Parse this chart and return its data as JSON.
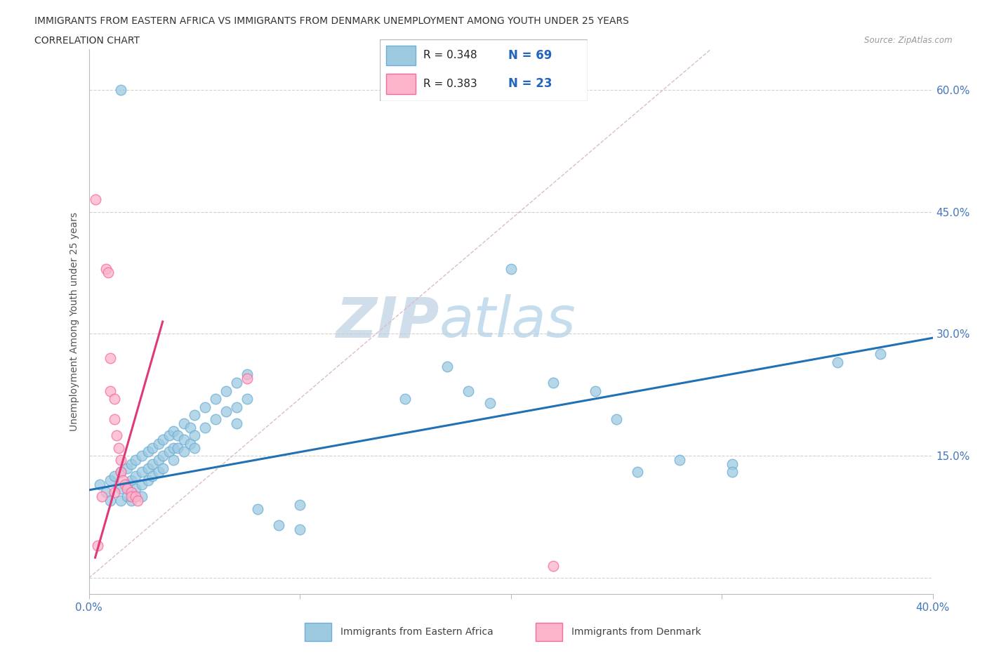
{
  "title_line1": "IMMIGRANTS FROM EASTERN AFRICA VS IMMIGRANTS FROM DENMARK UNEMPLOYMENT AMONG YOUTH UNDER 25 YEARS",
  "title_line2": "CORRELATION CHART",
  "source_text": "Source: ZipAtlas.com",
  "ylabel": "Unemployment Among Youth under 25 years",
  "xlim": [
    0.0,
    0.4
  ],
  "ylim": [
    -0.02,
    0.65
  ],
  "x_ticks": [
    0.0,
    0.1,
    0.2,
    0.3,
    0.4
  ],
  "y_ticks": [
    0.0,
    0.15,
    0.3,
    0.45,
    0.6
  ],
  "watermark_zip": "ZIP",
  "watermark_atlas": "atlas",
  "blue_color": "#9ecae1",
  "blue_edge_color": "#6baed6",
  "pink_color": "#fbb4c9",
  "pink_edge_color": "#f768a1",
  "blue_line_color": "#2171b5",
  "pink_line_color": "#de3a7a",
  "diag_color": "#ddbbcc",
  "blue_scatter": [
    [
      0.005,
      0.115
    ],
    [
      0.008,
      0.105
    ],
    [
      0.01,
      0.12
    ],
    [
      0.01,
      0.095
    ],
    [
      0.012,
      0.125
    ],
    [
      0.015,
      0.13
    ],
    [
      0.015,
      0.11
    ],
    [
      0.015,
      0.095
    ],
    [
      0.018,
      0.135
    ],
    [
      0.018,
      0.115
    ],
    [
      0.018,
      0.1
    ],
    [
      0.02,
      0.14
    ],
    [
      0.02,
      0.12
    ],
    [
      0.02,
      0.105
    ],
    [
      0.02,
      0.095
    ],
    [
      0.022,
      0.145
    ],
    [
      0.022,
      0.125
    ],
    [
      0.022,
      0.11
    ],
    [
      0.025,
      0.15
    ],
    [
      0.025,
      0.13
    ],
    [
      0.025,
      0.115
    ],
    [
      0.025,
      0.1
    ],
    [
      0.028,
      0.155
    ],
    [
      0.028,
      0.135
    ],
    [
      0.028,
      0.12
    ],
    [
      0.03,
      0.16
    ],
    [
      0.03,
      0.14
    ],
    [
      0.03,
      0.125
    ],
    [
      0.033,
      0.165
    ],
    [
      0.033,
      0.145
    ],
    [
      0.033,
      0.13
    ],
    [
      0.035,
      0.17
    ],
    [
      0.035,
      0.15
    ],
    [
      0.035,
      0.135
    ],
    [
      0.038,
      0.175
    ],
    [
      0.038,
      0.155
    ],
    [
      0.04,
      0.18
    ],
    [
      0.04,
      0.16
    ],
    [
      0.04,
      0.145
    ],
    [
      0.042,
      0.175
    ],
    [
      0.042,
      0.16
    ],
    [
      0.045,
      0.19
    ],
    [
      0.045,
      0.17
    ],
    [
      0.045,
      0.155
    ],
    [
      0.048,
      0.185
    ],
    [
      0.048,
      0.165
    ],
    [
      0.05,
      0.2
    ],
    [
      0.05,
      0.175
    ],
    [
      0.05,
      0.16
    ],
    [
      0.055,
      0.21
    ],
    [
      0.055,
      0.185
    ],
    [
      0.06,
      0.22
    ],
    [
      0.06,
      0.195
    ],
    [
      0.065,
      0.23
    ],
    [
      0.065,
      0.205
    ],
    [
      0.07,
      0.24
    ],
    [
      0.07,
      0.21
    ],
    [
      0.07,
      0.19
    ],
    [
      0.075,
      0.25
    ],
    [
      0.075,
      0.22
    ],
    [
      0.08,
      0.085
    ],
    [
      0.09,
      0.065
    ],
    [
      0.1,
      0.09
    ],
    [
      0.1,
      0.06
    ],
    [
      0.15,
      0.22
    ],
    [
      0.17,
      0.26
    ],
    [
      0.18,
      0.23
    ],
    [
      0.19,
      0.215
    ],
    [
      0.2,
      0.38
    ],
    [
      0.22,
      0.24
    ],
    [
      0.24,
      0.23
    ],
    [
      0.25,
      0.195
    ],
    [
      0.26,
      0.13
    ],
    [
      0.28,
      0.145
    ],
    [
      0.305,
      0.14
    ],
    [
      0.305,
      0.13
    ],
    [
      0.355,
      0.265
    ],
    [
      0.375,
      0.275
    ],
    [
      0.015,
      0.6
    ]
  ],
  "pink_scatter": [
    [
      0.003,
      0.465
    ],
    [
      0.008,
      0.38
    ],
    [
      0.009,
      0.375
    ],
    [
      0.01,
      0.27
    ],
    [
      0.01,
      0.23
    ],
    [
      0.012,
      0.22
    ],
    [
      0.012,
      0.195
    ],
    [
      0.013,
      0.175
    ],
    [
      0.014,
      0.16
    ],
    [
      0.015,
      0.145
    ],
    [
      0.015,
      0.13
    ],
    [
      0.016,
      0.12
    ],
    [
      0.017,
      0.115
    ],
    [
      0.018,
      0.11
    ],
    [
      0.02,
      0.105
    ],
    [
      0.02,
      0.1
    ],
    [
      0.022,
      0.1
    ],
    [
      0.023,
      0.095
    ],
    [
      0.004,
      0.04
    ],
    [
      0.075,
      0.245
    ],
    [
      0.22,
      0.015
    ],
    [
      0.012,
      0.105
    ],
    [
      0.006,
      0.1
    ]
  ],
  "blue_trend": [
    0.0,
    0.108,
    0.4,
    0.295
  ],
  "pink_trend": [
    0.003,
    0.025,
    0.035,
    0.315
  ],
  "diag_line": [
    0.0,
    0.0,
    0.295,
    0.65
  ]
}
